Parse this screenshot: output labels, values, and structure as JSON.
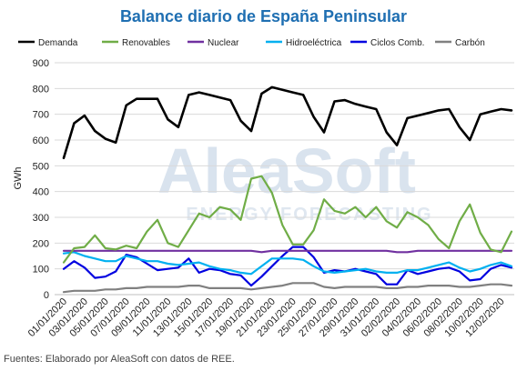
{
  "title": "Balance diario de España Peninsular",
  "source": "Fuentes: Elaborado por AleaSoft con datos de REE.",
  "watermark": {
    "main": "AleaSoft",
    "sub": "ENERGY FORECASTING"
  },
  "chart_data": {
    "type": "line",
    "title": "Balance diario de España Peninsular",
    "xlabel": "",
    "ylabel": "GWh",
    "ylim": [
      0,
      900
    ],
    "yticks": [
      0,
      100,
      200,
      300,
      400,
      500,
      600,
      700,
      800,
      900
    ],
    "grid": true,
    "legend_position": "top",
    "x": [
      "01/01/2020",
      "02/01/2020",
      "03/01/2020",
      "04/01/2020",
      "05/01/2020",
      "06/01/2020",
      "07/01/2020",
      "08/01/2020",
      "09/01/2020",
      "10/01/2020",
      "11/01/2020",
      "12/01/2020",
      "13/01/2020",
      "14/01/2020",
      "15/01/2020",
      "16/01/2020",
      "17/01/2020",
      "18/01/2020",
      "19/01/2020",
      "20/01/2020",
      "21/01/2020",
      "22/01/2020",
      "23/01/2020",
      "24/01/2020",
      "25/01/2020",
      "26/01/2020",
      "27/01/2020",
      "28/01/2020",
      "29/01/2020",
      "30/01/2020",
      "31/01/2020",
      "01/02/2020",
      "02/02/2020",
      "03/02/2020",
      "04/02/2020",
      "05/02/2020",
      "06/02/2020",
      "07/02/2020",
      "08/02/2020",
      "09/02/2020",
      "10/02/2020",
      "11/02/2020",
      "12/02/2020",
      "13/02/2020"
    ],
    "x_tick_labels": [
      "01/01/2020",
      "03/01/2020",
      "05/01/2020",
      "07/01/2020",
      "09/01/2020",
      "11/01/2020",
      "13/01/2020",
      "15/01/2020",
      "17/01/2020",
      "19/01/2020",
      "21/01/2020",
      "23/01/2020",
      "25/01/2020",
      "27/01/2020",
      "29/01/2020",
      "31/01/2020",
      "02/02/2020",
      "04/02/2020",
      "06/02/2020",
      "08/02/2020",
      "10/02/2020",
      "12/02/2020"
    ],
    "series": [
      {
        "name": "Demanda",
        "color": "#000000",
        "values": [
          530,
          665,
          695,
          635,
          605,
          590,
          735,
          760,
          760,
          760,
          680,
          650,
          775,
          785,
          775,
          765,
          755,
          675,
          635,
          780,
          805,
          795,
          785,
          775,
          690,
          630,
          750,
          755,
          740,
          730,
          720,
          630,
          580,
          685,
          695,
          705,
          715,
          720,
          650,
          600,
          700,
          710,
          720,
          715
        ]
      },
      {
        "name": "Renovables",
        "color": "#70ad47",
        "values": [
          125,
          180,
          185,
          230,
          180,
          175,
          190,
          180,
          245,
          290,
          200,
          185,
          250,
          315,
          300,
          340,
          330,
          290,
          450,
          460,
          395,
          270,
          195,
          195,
          250,
          370,
          325,
          315,
          340,
          300,
          340,
          285,
          260,
          320,
          300,
          270,
          215,
          180,
          285,
          350,
          240,
          175,
          165,
          245
        ]
      },
      {
        "name": "Nuclear",
        "color": "#7030a0",
        "values": [
          170,
          170,
          170,
          170,
          170,
          170,
          170,
          170,
          170,
          170,
          170,
          170,
          170,
          170,
          170,
          170,
          170,
          170,
          170,
          165,
          170,
          170,
          170,
          170,
          170,
          170,
          170,
          170,
          170,
          170,
          170,
          170,
          165,
          165,
          170,
          170,
          170,
          170,
          170,
          170,
          170,
          170,
          170,
          170
        ]
      },
      {
        "name": "Hidroeléctrica",
        "color": "#00b0f0",
        "values": [
          160,
          165,
          150,
          140,
          130,
          130,
          150,
          140,
          130,
          130,
          120,
          115,
          120,
          125,
          110,
          100,
          95,
          85,
          80,
          110,
          140,
          140,
          140,
          135,
          110,
          90,
          85,
          90,
          95,
          100,
          90,
          85,
          85,
          95,
          95,
          105,
          115,
          125,
          105,
          90,
          100,
          115,
          125,
          110
        ]
      },
      {
        "name": "Ciclos Comb.",
        "color": "#0000e0",
        "values": [
          100,
          130,
          105,
          65,
          70,
          90,
          155,
          145,
          120,
          95,
          100,
          105,
          140,
          85,
          100,
          95,
          80,
          75,
          35,
          70,
          110,
          150,
          185,
          185,
          145,
          85,
          95,
          90,
          100,
          90,
          80,
          40,
          40,
          95,
          80,
          90,
          100,
          105,
          90,
          55,
          60,
          100,
          115,
          105
        ]
      },
      {
        "name": "Carbón",
        "color": "#808080",
        "values": [
          10,
          15,
          15,
          15,
          20,
          20,
          25,
          25,
          30,
          30,
          30,
          30,
          35,
          35,
          25,
          25,
          25,
          25,
          20,
          25,
          30,
          35,
          45,
          45,
          45,
          30,
          25,
          30,
          30,
          30,
          30,
          25,
          25,
          30,
          30,
          35,
          35,
          35,
          30,
          30,
          35,
          40,
          40,
          35
        ]
      }
    ]
  }
}
